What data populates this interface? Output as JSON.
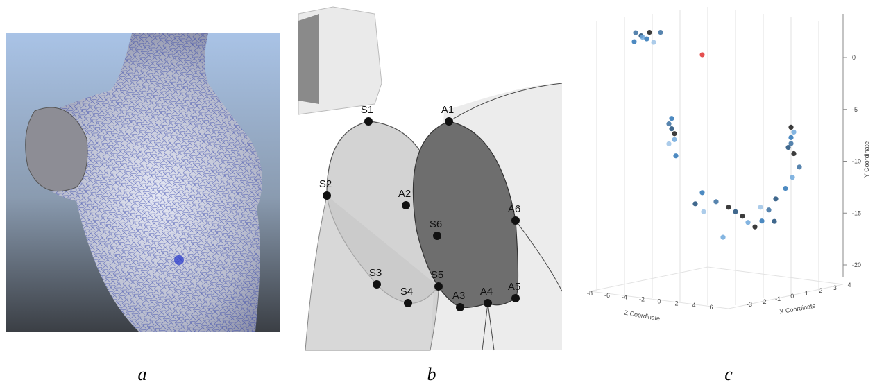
{
  "panels": [
    {
      "label": "a"
    },
    {
      "label": "b",
      "points": [
        {
          "label": "S1"
        },
        {
          "label": "S2"
        },
        {
          "label": "S3"
        },
        {
          "label": "S4"
        },
        {
          "label": "S5"
        },
        {
          "label": "S6"
        },
        {
          "label": "A1"
        },
        {
          "label": "A2"
        },
        {
          "label": "A3"
        },
        {
          "label": "A4"
        },
        {
          "label": "A5"
        },
        {
          "label": "A6"
        }
      ]
    },
    {
      "label": "c",
      "z_axis": {
        "label": "Z Coordinate",
        "ticks": [
          -8,
          -6,
          -4,
          -2,
          0,
          2,
          4,
          6
        ]
      },
      "x_axis": {
        "label": "X Coordinate",
        "ticks": [
          -3,
          -2,
          -1,
          0,
          1,
          2,
          3,
          4
        ]
      },
      "y_axis": {
        "label": "Y Coordinate",
        "ticks": [
          0,
          -5,
          -10,
          -15,
          -20
        ]
      },
      "points": [
        {
          "x": -3,
          "z": -8,
          "y": 2,
          "color": "#3a6fa0"
        },
        {
          "x": -3,
          "z": -7,
          "y": 1.8,
          "color": "#1f4e79"
        },
        {
          "x": -2.5,
          "z": -8,
          "y": 1.5,
          "color": "#6fa8dc"
        },
        {
          "x": -3,
          "z": -6,
          "y": 1.6,
          "color": "#2e75b6"
        },
        {
          "x": -2,
          "z": -8,
          "y": 1.9,
          "color": "#1a1a1a"
        },
        {
          "x": -2.5,
          "z": -6,
          "y": 1.2,
          "color": "#9dc3e6"
        },
        {
          "x": -3.5,
          "z": -7,
          "y": 1.3,
          "color": "#2e75b6"
        },
        {
          "x": -2,
          "z": -6,
          "y": 2.1,
          "color": "#3a6fa0"
        },
        {
          "x": -1,
          "z": -1,
          "y": 0.3,
          "color": "#e03030"
        },
        {
          "x": -2,
          "z": -4,
          "y": -6,
          "color": "#2e75b6"
        },
        {
          "x": -2,
          "z": -4,
          "y": -7,
          "color": "#1f4e79"
        },
        {
          "x": -2,
          "z": -3.5,
          "y": -8,
          "color": "#6fa8dc"
        },
        {
          "x": -2.2,
          "z": -4,
          "y": -6.5,
          "color": "#3a6fa0"
        },
        {
          "x": -1.8,
          "z": -4,
          "y": -7.5,
          "color": "#1a1a1a"
        },
        {
          "x": -2,
          "z": -4.5,
          "y": -8.5,
          "color": "#9dc3e6"
        },
        {
          "x": -2.1,
          "z": -3,
          "y": -9.5,
          "color": "#2e75b6"
        },
        {
          "x": 4,
          "z": 2.5,
          "y": -7,
          "color": "#1a1a1a"
        },
        {
          "x": 4,
          "z": 2.5,
          "y": -8,
          "color": "#2e75b6"
        },
        {
          "x": 4,
          "z": 2,
          "y": -9,
          "color": "#1f4e79"
        },
        {
          "x": 3.8,
          "z": 3,
          "y": -8.5,
          "color": "#3a6fa0"
        },
        {
          "x": 4.2,
          "z": 2.5,
          "y": -7.5,
          "color": "#6fa8dc"
        },
        {
          "x": 4,
          "z": 3,
          "y": -9.5,
          "color": "#1a1a1a"
        },
        {
          "x": -1,
          "z": -1,
          "y": -13,
          "color": "#2e75b6"
        },
        {
          "x": 0,
          "z": -1,
          "y": -14,
          "color": "#3a6fa0"
        },
        {
          "x": 0.5,
          "z": 0,
          "y": -14.5,
          "color": "#1a1a1a"
        },
        {
          "x": 1,
          "z": 0,
          "y": -15,
          "color": "#1f4e79"
        },
        {
          "x": 1.5,
          "z": 1,
          "y": -16,
          "color": "#6fa8dc"
        },
        {
          "x": 2,
          "z": 1,
          "y": -16.5,
          "color": "#1a1a1a"
        },
        {
          "x": 2.5,
          "z": 1,
          "y": -16,
          "color": "#2e75b6"
        },
        {
          "x": 3,
          "z": 1,
          "y": -15,
          "color": "#3a6fa0"
        },
        {
          "x": 3.5,
          "z": 1,
          "y": -14,
          "color": "#1f4e79"
        },
        {
          "x": 4,
          "z": 1.5,
          "y": -13,
          "color": "#2e75b6"
        },
        {
          "x": 4.5,
          "z": 1.5,
          "y": -12,
          "color": "#6fa8dc"
        },
        {
          "x": 4.8,
          "z": 2,
          "y": -11,
          "color": "#3a6fa0"
        },
        {
          "x": -0.5,
          "z": -2,
          "y": -15,
          "color": "#9dc3e6"
        },
        {
          "x": 0.5,
          "z": -1,
          "y": -17.5,
          "color": "#6fa8dc"
        },
        {
          "x": 1.5,
          "z": 0,
          "y": -15.5,
          "color": "#1a1a1a"
        },
        {
          "x": 2,
          "z": 2,
          "y": -14.5,
          "color": "#9dc3e6"
        },
        {
          "x": 3,
          "z": 2,
          "y": -16,
          "color": "#1f4e79"
        },
        {
          "x": -1.5,
          "z": -1,
          "y": -14,
          "color": "#1f4e79"
        }
      ]
    }
  ]
}
